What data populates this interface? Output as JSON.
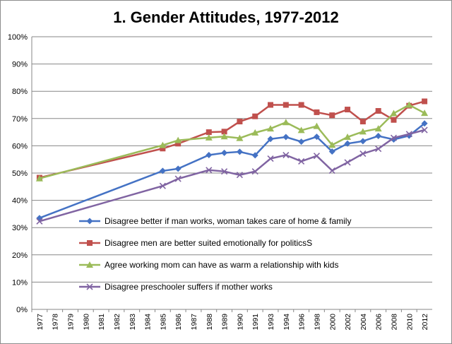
{
  "chart_data": {
    "type": "line",
    "title": "1. Gender Attitudes, 1977-2012",
    "xlabel": "",
    "ylabel": "",
    "ylim": [
      0,
      100
    ],
    "y_tick_suffix": "%",
    "y_ticks": [
      0,
      10,
      20,
      30,
      40,
      50,
      60,
      70,
      80,
      90,
      100
    ],
    "x_tick_labels": [
      "1977",
      "1978",
      "1979",
      "1980",
      "1981",
      "1982",
      "1983",
      "1984",
      "1985",
      "1986",
      "1987",
      "1988",
      "1989",
      "1990",
      "1991",
      "1993",
      "1994",
      "1996",
      "1998",
      "2000",
      "2002",
      "2004",
      "2006",
      "2008",
      "2010",
      "2012"
    ],
    "legend_position": "lower-middle",
    "grid": "horizontal",
    "series": [
      {
        "name": "Disagree better if man works, woman takes care of home & family",
        "color": "#4472C4",
        "marker": "diamond",
        "points": [
          [
            "1977",
            33.5
          ],
          [
            "1985",
            50.8
          ],
          [
            "1986",
            51.6
          ],
          [
            "1988",
            56.6
          ],
          [
            "1989",
            57.4
          ],
          [
            "1990",
            57.8
          ],
          [
            "1991",
            56.5
          ],
          [
            "1993",
            62.5
          ],
          [
            "1994",
            63.2
          ],
          [
            "1996",
            61.5
          ],
          [
            "1998",
            63.3
          ],
          [
            "2000",
            57.9
          ],
          [
            "2002",
            60.8
          ],
          [
            "2004",
            61.7
          ],
          [
            "2006",
            63.6
          ],
          [
            "2008",
            62.3
          ],
          [
            "2010",
            63.7
          ],
          [
            "2012",
            68.2
          ]
        ]
      },
      {
        "name": "Disagree men are better suited emotionally for politicsS",
        "color": "#C0504D",
        "marker": "square",
        "points": [
          [
            "1977",
            48.3
          ],
          [
            "1985",
            59.0
          ],
          [
            "1986",
            60.8
          ],
          [
            "1988",
            65.0
          ],
          [
            "1989",
            65.2
          ],
          [
            "1990",
            68.9
          ],
          [
            "1991",
            70.8
          ],
          [
            "1993",
            75.0
          ],
          [
            "1994",
            75.0
          ],
          [
            "1996",
            75.0
          ],
          [
            "1998",
            72.3
          ],
          [
            "2000",
            71.2
          ],
          [
            "2002",
            73.3
          ],
          [
            "2004",
            68.9
          ],
          [
            "2006",
            72.8
          ],
          [
            "2008",
            69.5
          ],
          [
            "2010",
            74.7
          ],
          [
            "2012",
            76.3
          ]
        ]
      },
      {
        "name": "Agree working mom can have as warm a relationship with kids",
        "color": "#9BBB59",
        "marker": "triangle",
        "points": [
          [
            "1977",
            48.0
          ],
          [
            "1985",
            60.2
          ],
          [
            "1986",
            62.0
          ],
          [
            "1988",
            63.0
          ],
          [
            "1989",
            63.4
          ],
          [
            "1990",
            62.8
          ],
          [
            "1991",
            64.8
          ],
          [
            "1993",
            66.3
          ],
          [
            "1994",
            68.6
          ],
          [
            "1996",
            65.7
          ],
          [
            "1998",
            67.2
          ],
          [
            "2000",
            60.3
          ],
          [
            "2002",
            63.2
          ],
          [
            "2004",
            65.2
          ],
          [
            "2006",
            66.3
          ],
          [
            "2008",
            71.9
          ],
          [
            "2010",
            75.0
          ],
          [
            "2012",
            72.0
          ]
        ]
      },
      {
        "name": "Disagree preschooler suffers if mother works",
        "color": "#8064A2",
        "marker": "x",
        "points": [
          [
            "1977",
            32.3
          ],
          [
            "1985",
            45.3
          ],
          [
            "1986",
            47.9
          ],
          [
            "1988",
            51.1
          ],
          [
            "1989",
            50.6
          ],
          [
            "1990",
            49.3
          ],
          [
            "1991",
            50.6
          ],
          [
            "1993",
            55.3
          ],
          [
            "1994",
            56.6
          ],
          [
            "1996",
            54.3
          ],
          [
            "1998",
            56.3
          ],
          [
            "2000",
            50.9
          ],
          [
            "2002",
            53.9
          ],
          [
            "2004",
            57.1
          ],
          [
            "2006",
            58.9
          ],
          [
            "2008",
            62.9
          ],
          [
            "2010",
            64.3
          ],
          [
            "2012",
            65.8
          ]
        ]
      }
    ]
  }
}
